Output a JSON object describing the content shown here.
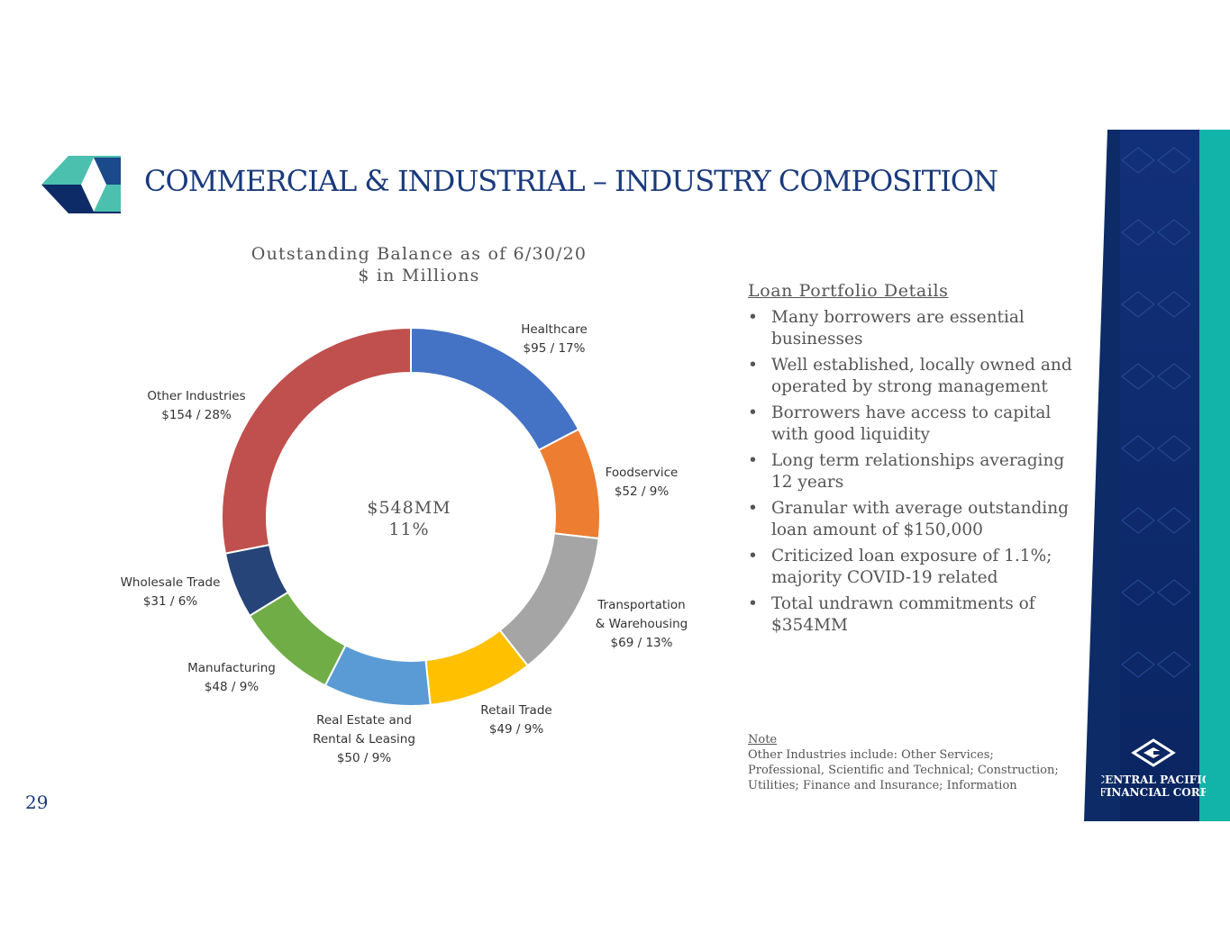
{
  "slide": {
    "title": "COMMERCIAL & INDUSTRIAL – INDUSTRY COMPOSITION",
    "page_number": "29",
    "colors": {
      "title": "#1a3a7c",
      "navy": "#0d2b66",
      "teal": "#12b3a8"
    }
  },
  "logo": {
    "icon": "central-pacific-logo-icon"
  },
  "chart_data": {
    "type": "pie",
    "title": "Outstanding Balance as of 6/30/20",
    "subtitle": "$ in Millions",
    "center_text": [
      "$548MM",
      "11%"
    ],
    "slices": [
      {
        "name": "Healthcare",
        "label_lines": [
          "Healthcare",
          "$95 / 17%"
        ],
        "value": 95,
        "percent": 17,
        "color": "#4472c4"
      },
      {
        "name": "Foodservice",
        "label_lines": [
          "Foodservice",
          "$52 / 9%"
        ],
        "value": 52,
        "percent": 9,
        "color": "#ed7d31"
      },
      {
        "name": "Transportation & Warehousing",
        "label_lines": [
          "Transportation",
          "& Warehousing",
          "$69 / 13%"
        ],
        "value": 69,
        "percent": 13,
        "color": "#a5a5a5"
      },
      {
        "name": "Retail Trade",
        "label_lines": [
          "Retail Trade",
          "$49 / 9%"
        ],
        "value": 49,
        "percent": 9,
        "color": "#ffc000"
      },
      {
        "name": "Real Estate and Rental & Leasing",
        "label_lines": [
          "Real Estate and",
          "Rental & Leasing",
          "$50 / 9%"
        ],
        "value": 50,
        "percent": 9,
        "color": "#5b9bd5"
      },
      {
        "name": "Manufacturing",
        "label_lines": [
          "Manufacturing",
          "$48 / 9%"
        ],
        "value": 48,
        "percent": 9,
        "color": "#70ad47"
      },
      {
        "name": "Wholesale Trade",
        "label_lines": [
          "Wholesale Trade",
          "$31 / 6%"
        ],
        "value": 31,
        "percent": 6,
        "color": "#264478"
      },
      {
        "name": "Other Industries",
        "label_lines": [
          "Other Industries",
          "$154 / 28%"
        ],
        "value": 154,
        "percent": 28,
        "color": "#c0504d"
      }
    ]
  },
  "details": {
    "title": "Loan Portfolio Details",
    "bullets": [
      "Many borrowers are essential businesses",
      "Well established, locally owned and operated by strong management",
      "Borrowers have access to capital with good liquidity",
      "Long term relationships averaging 12 years",
      "Granular with average outstanding loan amount of $150,000",
      "Criticized loan exposure of 1.1%; majority COVID-19 related",
      "Total undrawn commitments of $354MM"
    ]
  },
  "note": {
    "title": "Note",
    "text": "Other Industries include: Other Services; Professional, Scientific and Technical; Construction; Utilities; Finance and Insurance; Information"
  },
  "footer_logo": {
    "icon": "central-pacific-small-logo-icon",
    "line1": "CENTRAL PACIFIC",
    "line2": "FINANCIAL CORP"
  }
}
